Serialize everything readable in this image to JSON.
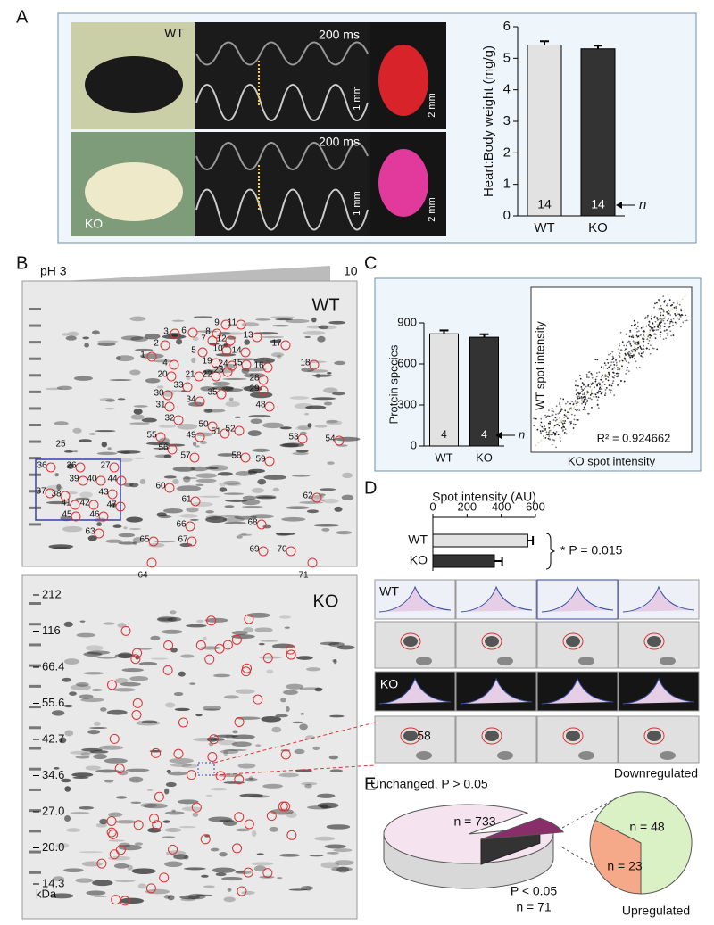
{
  "panel_labels": [
    "A",
    "B",
    "C",
    "D",
    "E"
  ],
  "panel_a": {
    "wt": "WT",
    "ko": "KO",
    "time_scale": "200 ms",
    "depth_scale": "1 mm",
    "heart_scale": "2 mm"
  },
  "panel_b": {
    "ph_start": "pH 3",
    "ph_end": "10",
    "wt_label": "WT",
    "ko_label": "KO",
    "spots": [
      1,
      2,
      3,
      4,
      5,
      6,
      7,
      8,
      9,
      10,
      11,
      12,
      13,
      14,
      15,
      16,
      17,
      18,
      19,
      20,
      21,
      22,
      23,
      24,
      25,
      26,
      27,
      28,
      29,
      30,
      31,
      32,
      33,
      34,
      35,
      36,
      37,
      38,
      39,
      40,
      41,
      42,
      43,
      44,
      45,
      46,
      47,
      48,
      49,
      50,
      51,
      52,
      53,
      54,
      55,
      56,
      57,
      58,
      59,
      60,
      61,
      62,
      63,
      64,
      65,
      66,
      67,
      68,
      69,
      70,
      71
    ],
    "markers": [
      "212",
      "116",
      "66.4",
      "55.6",
      "42.7",
      "34.6",
      "27.0",
      "20.0",
      "14.3"
    ],
    "marker_unit": "kDa"
  },
  "panel_c": {
    "xlabel": "KO spot intensity",
    "ylabel": "WT spot intensity",
    "annotation": "R² = 0.924662"
  },
  "panel_d": {
    "wt": "WT",
    "ko": "KO",
    "spot": "58"
  },
  "chart_data": [
    {
      "type": "bar",
      "ylabel": "Heart:Body weight (mg/g)",
      "categories": [
        "WT",
        "KO"
      ],
      "values": [
        5.42,
        5.3
      ],
      "errors": [
        0.12,
        0.1
      ],
      "colors": [
        "#e2e2e2",
        "#333333"
      ],
      "ylim": [
        0,
        6
      ],
      "yticks": [
        0,
        1,
        2,
        3,
        4,
        5,
        6
      ],
      "n": [
        14,
        14
      ],
      "n_label": "n"
    },
    {
      "type": "bar",
      "ylabel": "Protein species",
      "categories": [
        "WT",
        "KO"
      ],
      "values": [
        820,
        795
      ],
      "errors": [
        25,
        22
      ],
      "colors": [
        "#e2e2e2",
        "#333333"
      ],
      "ylim": [
        0,
        900
      ],
      "yticks": [
        0,
        300,
        600,
        900
      ],
      "n": [
        4,
        4
      ],
      "n_label": "n"
    },
    {
      "type": "hbar",
      "title": "Spot intensity (AU)",
      "categories": [
        "WT",
        "KO"
      ],
      "values": [
        555,
        360
      ],
      "errors": [
        30,
        45
      ],
      "colors": [
        "#e2e2e2",
        "#333333"
      ],
      "xlim": [
        0,
        600
      ],
      "xticks": [
        0,
        200,
        400,
        600
      ],
      "annotation": "* P = 0.015"
    },
    {
      "type": "pie",
      "categories": [
        "Unchanged, P > 0.05",
        "P < 0.05"
      ],
      "values": [
        733,
        71
      ],
      "value_labels": [
        "n = 733",
        "n = 71"
      ],
      "colors": [
        "#f6e3f0",
        "#444444"
      ]
    },
    {
      "type": "pie",
      "categories": [
        "Downregulated",
        "Upregulated"
      ],
      "values": [
        48,
        23
      ],
      "value_labels": [
        "n = 48",
        "n = 23"
      ],
      "colors": [
        "#d9f1c4",
        "#f6a988"
      ]
    }
  ]
}
